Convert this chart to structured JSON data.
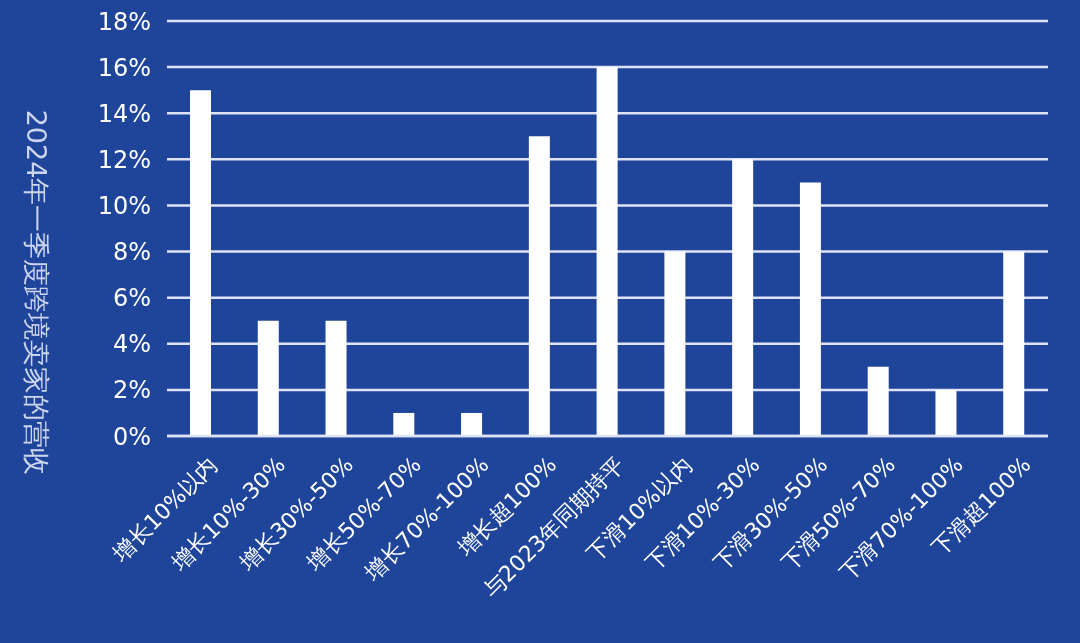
{
  "chart_data": {
    "type": "bar",
    "ylabel": "2024年一季度跨境卖家的营收",
    "categories": [
      "增长10%以内",
      "增长10%-30%",
      "增长30%-50%",
      "增长50%-70%",
      "增长70%-100%",
      "增长超100%",
      "与2023年同期持平",
      "下滑10%以内",
      "下滑10%-30%",
      "下滑30%-50%",
      "下滑50%-70%",
      "下滑70%-100%",
      "下滑超100%"
    ],
    "values": [
      15,
      5,
      5,
      1,
      1,
      13,
      16,
      8,
      12,
      11,
      3,
      2,
      8
    ],
    "color": "#ffffff",
    "ylim": [
      0,
      18
    ],
    "yticks": [
      {
        "value": 0,
        "label": "0%"
      },
      {
        "value": 2,
        "label": "2%"
      },
      {
        "value": 4,
        "label": "4%"
      },
      {
        "value": 6,
        "label": "6%"
      },
      {
        "value": 8,
        "label": "8%"
      },
      {
        "value": 10,
        "label": "10%"
      },
      {
        "value": 12,
        "label": "12%"
      },
      {
        "value": 14,
        "label": "14%"
      },
      {
        "value": 16,
        "label": "16%"
      },
      {
        "value": 18,
        "label": "18%"
      }
    ],
    "grid": "y"
  }
}
